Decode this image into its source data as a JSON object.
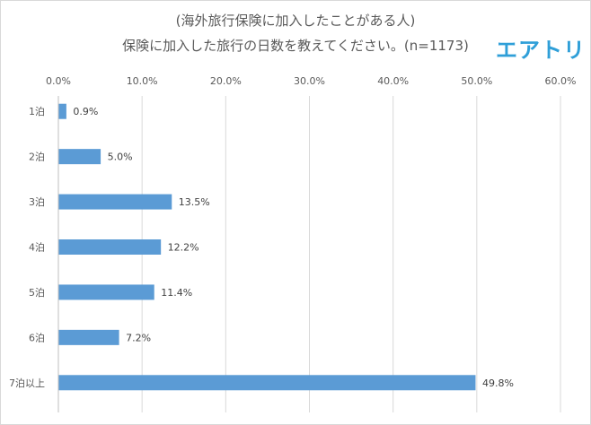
{
  "header": {
    "title_line1": "(海外旅行保険に加入したことがある人)",
    "title_line2": "保険に加入した旅行の日数を教えてください。(n=1173)",
    "logo_text": "エアトリ",
    "logo_color": "#2f9fd8"
  },
  "chart_data": {
    "type": "bar",
    "orientation": "horizontal",
    "title": "保険に加入した旅行の日数を教えてください。(n=1173)",
    "subtitle": "(海外旅行保険に加入したことがある人)",
    "categories": [
      "1泊",
      "2泊",
      "3泊",
      "4泊",
      "5泊",
      "6泊",
      "7泊以上"
    ],
    "values": [
      0.9,
      5.0,
      13.5,
      12.2,
      11.4,
      7.2,
      49.8
    ],
    "value_labels": [
      "0.9%",
      "5.0%",
      "13.5%",
      "12.2%",
      "11.4%",
      "7.2%",
      "49.8%"
    ],
    "x_ticks": [
      0,
      10,
      20,
      30,
      40,
      50,
      60
    ],
    "x_tick_labels": [
      "0.0%",
      "10.0%",
      "20.0%",
      "30.0%",
      "40.0%",
      "50.0%",
      "60.0%"
    ],
    "xlim": [
      0,
      60
    ],
    "xaxis_position": "top",
    "grid": true,
    "legend": "none",
    "bar_color": "#5b9bd5"
  }
}
